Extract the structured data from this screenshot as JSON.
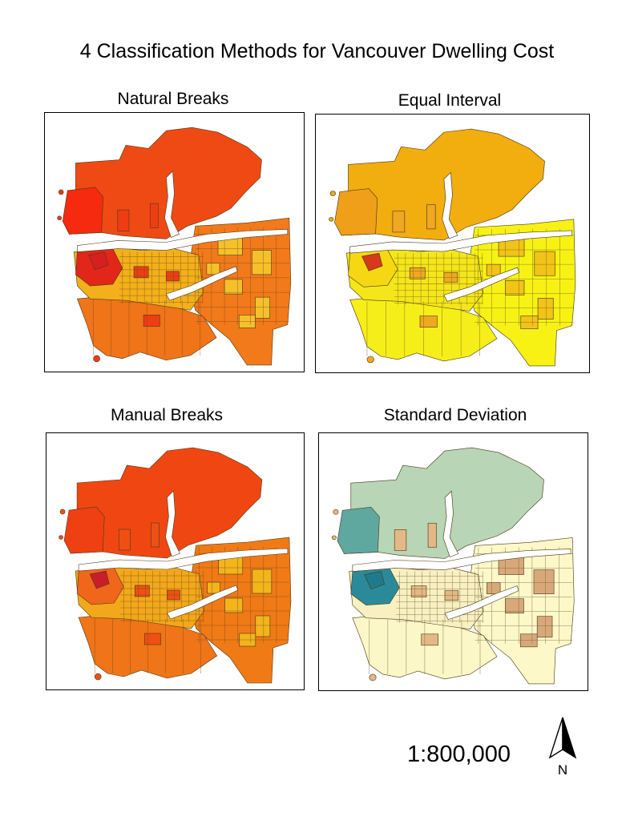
{
  "title": "4 Classification Methods for Vancouver Dwelling Cost",
  "panels": [
    {
      "label": "Natural Breaks",
      "colors": {
        "north": "#f04a14",
        "northwest": "#f52a0e",
        "west_core": "#e2261a",
        "downtown": "#d81f1f",
        "south": "#f07418",
        "central": "#f3b01a",
        "east": "#f27a1a",
        "east_mix": "#f5c02a",
        "accent": "#ee3d14",
        "grid": "#6e4a1a"
      }
    },
    {
      "label": "Equal Interval",
      "colors": {
        "north": "#f2ad0f",
        "northwest": "#f0a018",
        "west_core": "#f6d812",
        "downtown": "#d63a1a",
        "south": "#f6ee18",
        "central": "#f4e61a",
        "east": "#f7f214",
        "east_mix": "#f2c418",
        "accent": "#f0a822",
        "grid": "#6e5a1a"
      }
    },
    {
      "label": "Manual Breaks",
      "colors": {
        "north": "#f04712",
        "northwest": "#ee4012",
        "west_core": "#f0661a",
        "downtown": "#c81e2a",
        "south": "#f07418",
        "central": "#f2a81a",
        "east": "#f07a16",
        "east_mix": "#f3b41c",
        "accent": "#ee5014",
        "grid": "#6e4a1a"
      }
    },
    {
      "label": "Standard Deviation",
      "colors": {
        "north": "#b8d5b5",
        "northwest": "#5fa8a0",
        "west_core": "#2b8a9a",
        "downtown": "#1f7a8c",
        "south": "#fcf7c6",
        "central": "#f8f0c0",
        "east": "#fdf8c8",
        "east_mix": "#d9a87a",
        "accent": "#e4b886",
        "grid": "#6a5a30"
      }
    }
  ],
  "scale_text": "1:800,000",
  "north_arrow": {
    "icon": "north-arrow-icon",
    "label": "N"
  }
}
